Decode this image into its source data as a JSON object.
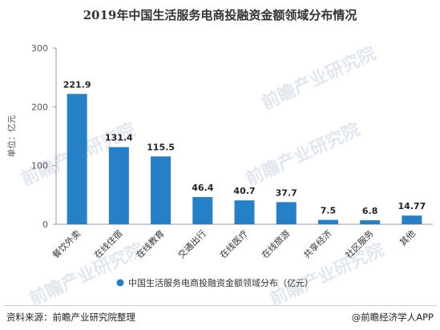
{
  "title": "2019年中国生活服务电商投融资金额领域分布情况",
  "footer": {
    "source": "资料来源：前瞻产业研究院整理",
    "brand": "@前瞻经济学人APP"
  },
  "watermark": "前瞻产业研究院",
  "colors": {
    "bar": "#2680c8",
    "axis": "#999999",
    "text": "#333333"
  },
  "chart_data": {
    "type": "bar",
    "categories": [
      "餐饮外卖",
      "在线住宿",
      "在线教育",
      "交通出行",
      "在线医疗",
      "在线旅游",
      "共享经济",
      "社区服务",
      "其他"
    ],
    "series": [
      {
        "name": "中国生活服务电商投融资金额领域分布（亿元）",
        "values": [
          221.9,
          131.4,
          115.5,
          46.4,
          40.7,
          37.7,
          7.5,
          6.8,
          14.77
        ]
      }
    ],
    "data_labels": [
      "221.9",
      "131.4",
      "115.5",
      "46.4",
      "40.7",
      "37.7",
      "7.5",
      "6.8",
      "14.77"
    ],
    "ylabel": "单位：亿元",
    "ylim": [
      0,
      300
    ],
    "yticks": [
      0,
      100,
      200,
      300
    ],
    "legend": "bottom-center",
    "grid": false
  }
}
